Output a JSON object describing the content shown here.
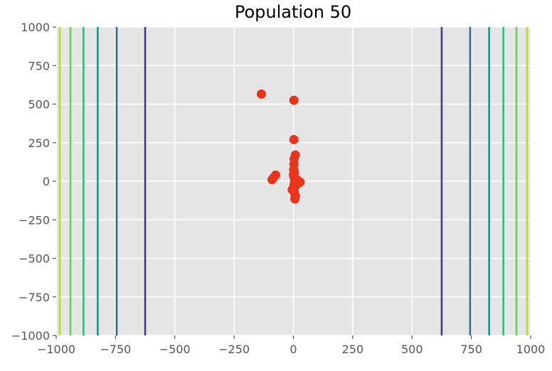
{
  "chart_data": {
    "type": "scatter",
    "title": "Population 50",
    "xlabel": "",
    "ylabel": "",
    "xlim": [
      -1000,
      1000
    ],
    "ylim": [
      -1000,
      1000
    ],
    "xticks": [
      "−1000",
      "−750",
      "−500",
      "−250",
      "0",
      "250",
      "500",
      "750",
      "1000"
    ],
    "yticks": [
      "1000",
      "750",
      "500",
      "250",
      "0",
      "−250",
      "−500",
      "−750",
      "−1000"
    ],
    "grid": true,
    "legend": "none",
    "background_color": "#e5e5e5",
    "point_color": "#e8341c",
    "contour_lines": [
      {
        "x": -985,
        "color": "#b5de2b"
      },
      {
        "x": -940,
        "color": "#6ccd59"
      },
      {
        "x": -885,
        "color": "#35b779"
      },
      {
        "x": -825,
        "color": "#21918c"
      },
      {
        "x": -745,
        "color": "#31688e"
      },
      {
        "x": -625,
        "color": "#443983"
      },
      {
        "x": 625,
        "color": "#443983"
      },
      {
        "x": 745,
        "color": "#31688e"
      },
      {
        "x": 825,
        "color": "#21918c"
      },
      {
        "x": 885,
        "color": "#35b779"
      },
      {
        "x": 940,
        "color": "#6ccd59"
      },
      {
        "x": 985,
        "color": "#b5de2b"
      }
    ],
    "points": [
      {
        "x": -135,
        "y": 565
      },
      {
        "x": 2,
        "y": 525
      },
      {
        "x": 2,
        "y": 270
      },
      {
        "x": 8,
        "y": 170
      },
      {
        "x": 3,
        "y": 145
      },
      {
        "x": 2,
        "y": 110
      },
      {
        "x": 1,
        "y": 75
      },
      {
        "x": 4,
        "y": 55
      },
      {
        "x": -75,
        "y": 40
      },
      {
        "x": -85,
        "y": 20
      },
      {
        "x": -90,
        "y": 10
      },
      {
        "x": 0,
        "y": 40
      },
      {
        "x": 3,
        "y": 25
      },
      {
        "x": 15,
        "y": 10
      },
      {
        "x": 28,
        "y": -5
      },
      {
        "x": 20,
        "y": -15
      },
      {
        "x": 5,
        "y": -5
      },
      {
        "x": 2,
        "y": -25
      },
      {
        "x": 4,
        "y": -45
      },
      {
        "x": -5,
        "y": -55
      },
      {
        "x": 3,
        "y": -70
      },
      {
        "x": 8,
        "y": -95
      },
      {
        "x": 6,
        "y": -115
      }
    ]
  }
}
